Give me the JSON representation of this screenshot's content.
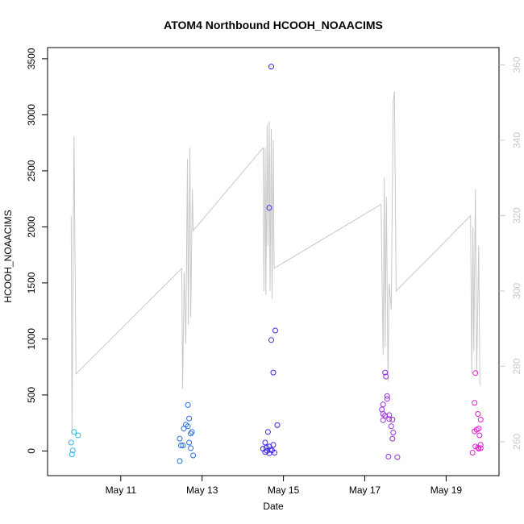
{
  "chart_data": {
    "type": "scatter",
    "title": "ATOM4 Northbound HCOOH_NOAACIMS",
    "xlabel": "Date",
    "ylabel": "HCOOH_NOAACIMS",
    "x_ticks": [
      {
        "label": "May 11",
        "day": 11
      },
      {
        "label": "May 13",
        "day": 13
      },
      {
        "label": "May 15",
        "day": 15
      },
      {
        "label": "May 17",
        "day": 17
      },
      {
        "label": "May 19",
        "day": 19
      }
    ],
    "xlim": [
      9.2,
      20.3
    ],
    "y_left": {
      "ticks": [
        0,
        500,
        1000,
        1500,
        2000,
        2500,
        3000,
        3500
      ],
      "ylim": [
        -220,
        3600
      ]
    },
    "y_right": {
      "ticks": [
        260,
        280,
        300,
        320,
        340,
        360
      ],
      "ylim": [
        251,
        364.6
      ],
      "color": "#c8c8c8"
    },
    "series": [
      {
        "type": "scatter",
        "axis": "left",
        "points": [
          {
            "x": 9.85,
            "y": 170,
            "color": "#29b6e8"
          },
          {
            "x": 9.95,
            "y": 140,
            "color": "#29b6e8"
          },
          {
            "x": 9.78,
            "y": 75,
            "color": "#29b6e8"
          },
          {
            "x": 9.82,
            "y": 5,
            "color": "#29b6e8"
          },
          {
            "x": 9.8,
            "y": -30,
            "color": "#29b6e8"
          },
          {
            "x": 12.65,
            "y": 410,
            "color": "#2a6ee0"
          },
          {
            "x": 12.68,
            "y": 290,
            "color": "#2a6ee0"
          },
          {
            "x": 12.6,
            "y": 235,
            "color": "#2a6ee0"
          },
          {
            "x": 12.65,
            "y": 220,
            "color": "#2a6ee0"
          },
          {
            "x": 12.55,
            "y": 200,
            "color": "#2a6ee0"
          },
          {
            "x": 12.75,
            "y": 170,
            "color": "#2a6ee0"
          },
          {
            "x": 12.72,
            "y": 155,
            "color": "#2a6ee0"
          },
          {
            "x": 12.45,
            "y": 110,
            "color": "#2a6ee0"
          },
          {
            "x": 12.68,
            "y": 75,
            "color": "#2a6ee0"
          },
          {
            "x": 12.48,
            "y": 50,
            "color": "#2a6ee0"
          },
          {
            "x": 12.53,
            "y": 50,
            "color": "#2a6ee0"
          },
          {
            "x": 12.72,
            "y": 25,
            "color": "#2a6ee0"
          },
          {
            "x": 12.78,
            "y": -40,
            "color": "#2a6ee0"
          },
          {
            "x": 12.45,
            "y": -90,
            "color": "#2a6ee0"
          },
          {
            "x": 14.7,
            "y": 3430,
            "color": "#3a28e0"
          },
          {
            "x": 14.65,
            "y": 2170,
            "color": "#3a28e0"
          },
          {
            "x": 14.8,
            "y": 1075,
            "color": "#3a28e0"
          },
          {
            "x": 14.7,
            "y": 990,
            "color": "#3a28e0"
          },
          {
            "x": 14.75,
            "y": 700,
            "color": "#3a28e0"
          },
          {
            "x": 14.85,
            "y": 230,
            "color": "#3a28e0"
          },
          {
            "x": 14.62,
            "y": 170,
            "color": "#3a28e0"
          },
          {
            "x": 14.55,
            "y": 75,
            "color": "#3a28e0"
          },
          {
            "x": 14.75,
            "y": 55,
            "color": "#3a28e0"
          },
          {
            "x": 14.65,
            "y": 40,
            "color": "#3a28e0"
          },
          {
            "x": 14.58,
            "y": 30,
            "color": "#3a28e0"
          },
          {
            "x": 14.5,
            "y": 20,
            "color": "#3a28e0"
          },
          {
            "x": 14.68,
            "y": 10,
            "color": "#3a28e0"
          },
          {
            "x": 14.72,
            "y": 5,
            "color": "#3a28e0"
          },
          {
            "x": 14.6,
            "y": 0,
            "color": "#3a28e0"
          },
          {
            "x": 14.55,
            "y": -10,
            "color": "#3a28e0"
          },
          {
            "x": 14.78,
            "y": -15,
            "color": "#3a28e0"
          },
          {
            "x": 14.65,
            "y": -20,
            "color": "#3a28e0"
          },
          {
            "x": 17.5,
            "y": 700,
            "color": "#9a30d8"
          },
          {
            "x": 17.52,
            "y": 665,
            "color": "#9a30d8"
          },
          {
            "x": 17.55,
            "y": 490,
            "color": "#9a30d8"
          },
          {
            "x": 17.55,
            "y": 465,
            "color": "#9a30d8"
          },
          {
            "x": 17.45,
            "y": 415,
            "color": "#9a30d8"
          },
          {
            "x": 17.42,
            "y": 370,
            "color": "#9a30d8"
          },
          {
            "x": 17.45,
            "y": 330,
            "color": "#9a30d8"
          },
          {
            "x": 17.6,
            "y": 320,
            "color": "#9a30d8"
          },
          {
            "x": 17.5,
            "y": 315,
            "color": "#9a30d8"
          },
          {
            "x": 17.6,
            "y": 285,
            "color": "#9a30d8"
          },
          {
            "x": 17.68,
            "y": 280,
            "color": "#9a30d8"
          },
          {
            "x": 17.45,
            "y": 275,
            "color": "#9a30d8"
          },
          {
            "x": 17.65,
            "y": 220,
            "color": "#9a30d8"
          },
          {
            "x": 17.7,
            "y": 165,
            "color": "#9a30d8"
          },
          {
            "x": 17.68,
            "y": 110,
            "color": "#9a30d8"
          },
          {
            "x": 17.58,
            "y": -50,
            "color": "#9a30d8"
          },
          {
            "x": 17.8,
            "y": -55,
            "color": "#9a30d8"
          },
          {
            "x": 19.72,
            "y": 695,
            "color": "#e020d0"
          },
          {
            "x": 19.7,
            "y": 430,
            "color": "#e020d0"
          },
          {
            "x": 19.78,
            "y": 330,
            "color": "#e020d0"
          },
          {
            "x": 19.85,
            "y": 280,
            "color": "#e020d0"
          },
          {
            "x": 19.8,
            "y": 200,
            "color": "#e020d0"
          },
          {
            "x": 19.75,
            "y": 190,
            "color": "#e020d0"
          },
          {
            "x": 19.7,
            "y": 175,
            "color": "#e020d0"
          },
          {
            "x": 19.82,
            "y": 140,
            "color": "#e020d0"
          },
          {
            "x": 19.85,
            "y": 55,
            "color": "#e020d0"
          },
          {
            "x": 19.72,
            "y": 40,
            "color": "#e020d0"
          },
          {
            "x": 19.78,
            "y": 30,
            "color": "#e020d0"
          },
          {
            "x": 19.85,
            "y": 25,
            "color": "#e020d0"
          },
          {
            "x": 19.8,
            "y": 20,
            "color": "#e020d0"
          },
          {
            "x": 19.65,
            "y": -15,
            "color": "#e020d0"
          }
        ]
      },
      {
        "type": "line",
        "axis": "right",
        "color": "#c8c8c8",
        "points": [
          [
            9.78,
            320
          ],
          [
            9.8,
            262
          ],
          [
            9.85,
            341
          ],
          [
            9.9,
            278
          ],
          [
            12.5,
            306
          ],
          [
            12.52,
            274
          ],
          [
            12.56,
            305
          ],
          [
            12.6,
            286
          ],
          [
            12.64,
            335
          ],
          [
            12.66,
            291
          ],
          [
            12.7,
            338
          ],
          [
            12.72,
            293
          ],
          [
            12.76,
            327
          ],
          [
            12.78,
            316
          ],
          [
            14.5,
            338
          ],
          [
            14.52,
            300
          ],
          [
            14.55,
            338
          ],
          [
            14.57,
            299
          ],
          [
            14.6,
            344
          ],
          [
            14.62,
            312
          ],
          [
            14.65,
            345
          ],
          [
            14.67,
            300
          ],
          [
            14.7,
            343
          ],
          [
            14.72,
            298
          ],
          [
            14.75,
            340
          ],
          [
            14.77,
            306
          ],
          [
            17.4,
            323
          ],
          [
            17.45,
            283
          ],
          [
            17.48,
            330
          ],
          [
            17.5,
            285
          ],
          [
            17.53,
            325
          ],
          [
            17.57,
            276
          ],
          [
            17.6,
            302
          ],
          [
            17.65,
            295
          ],
          [
            17.7,
            350
          ],
          [
            17.73,
            353
          ],
          [
            17.77,
            300
          ],
          [
            19.6,
            320
          ],
          [
            19.63,
            278
          ],
          [
            19.66,
            317
          ],
          [
            19.68,
            284
          ],
          [
            19.72,
            327
          ],
          [
            19.75,
            278
          ],
          [
            19.8,
            312
          ],
          [
            19.83,
            275
          ]
        ]
      }
    ]
  }
}
